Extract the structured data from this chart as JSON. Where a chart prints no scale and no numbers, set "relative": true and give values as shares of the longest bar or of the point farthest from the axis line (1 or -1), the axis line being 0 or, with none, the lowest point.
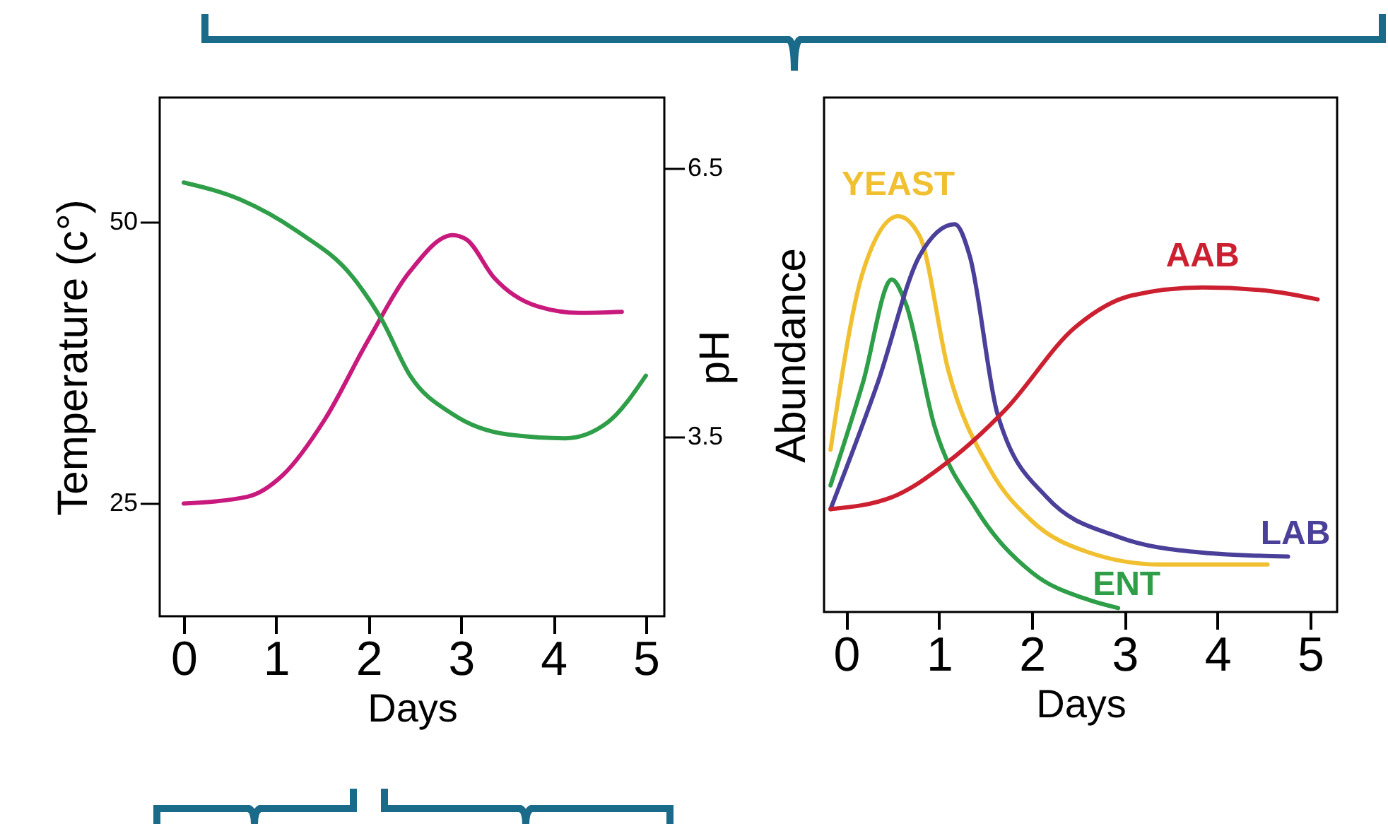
{
  "chart_data": [
    {
      "type": "line",
      "xlabel": "Days",
      "ylabel": "Temperature (c°)",
      "y2label": "pH",
      "xlim": [
        -0.26,
        5.2
      ],
      "xticks": [
        0,
        1,
        2,
        3,
        4,
        5
      ],
      "ylim": [
        15,
        61
      ],
      "yticks": [
        25,
        50
      ],
      "y2lim": [
        1.49,
        7.29
      ],
      "y2ticks": [
        3.5,
        6.5
      ],
      "grid": false,
      "series": [
        {
          "color": "#c8197d",
          "x": [
            0,
            0.69,
            1.07,
            1.53,
            1.99,
            2.45,
            2.91,
            3.06,
            3.36,
            3.82,
            4.28,
            4.74
          ],
          "values": [
            25,
            25.6,
            27.5,
            32.5,
            39.4,
            45.6,
            48.8,
            48.4,
            45,
            42.5,
            41.9,
            42
          ]
        },
        {
          "color": "#2e9e48",
          "axis": "y2",
          "x": [
            0,
            0.61,
            1.22,
            1.83,
            2.14,
            2.45,
            2.91,
            3.52,
            4.13,
            4.59,
            5
          ],
          "values": [
            6.34,
            6.15,
            5.8,
            5.28,
            4.81,
            4.18,
            3.75,
            3.52,
            3.48,
            3.66,
            4.18
          ]
        }
      ]
    },
    {
      "type": "line",
      "xlabel": "Days",
      "ylabel": "Abundance",
      "relative": true,
      "xlim": [
        -0.24,
        5.29
      ],
      "xticks": [
        0,
        1,
        2,
        3,
        4,
        5
      ],
      "grid": false,
      "series": [
        {
          "name": "YEAST",
          "color": "#f0c030",
          "x": [
            -0.17,
            0.18,
            0.56,
            0.79,
            1.1,
            1.55,
            2.0,
            2.62,
            3.38,
            4.54
          ],
          "values": [
            0.41,
            0.86,
            1,
            0.95,
            0.61,
            0.36,
            0.23,
            0.15,
            0.12,
            0.12
          ]
        },
        {
          "name": "ENT",
          "color": "#2e9e48",
          "x": [
            -0.17,
            0.18,
            0.49,
            0.64,
            0.95,
            1.4,
            2.0,
            2.62,
            2.93
          ],
          "values": [
            0.32,
            0.58,
            0.84,
            0.78,
            0.47,
            0.26,
            0.1,
            0.03,
            0.01
          ]
        },
        {
          "name": "LAB",
          "color": "#4a3f99",
          "x": [
            -0.17,
            0.34,
            0.79,
            1.17,
            1.33,
            1.63,
            2.16,
            2.93,
            3.84,
            4.76
          ],
          "values": [
            0.26,
            0.58,
            0.9,
            0.98,
            0.9,
            0.5,
            0.29,
            0.19,
            0.15,
            0.14
          ]
        },
        {
          "name": "AAB",
          "color": "#cc2030",
          "x": [
            -0.17,
            0.49,
            1.1,
            1.71,
            2.47,
            3.08,
            3.84,
            4.6,
            5.08
          ],
          "values": [
            0.26,
            0.29,
            0.38,
            0.51,
            0.72,
            0.8,
            0.82,
            0.81,
            0.79
          ]
        }
      ]
    }
  ]
}
